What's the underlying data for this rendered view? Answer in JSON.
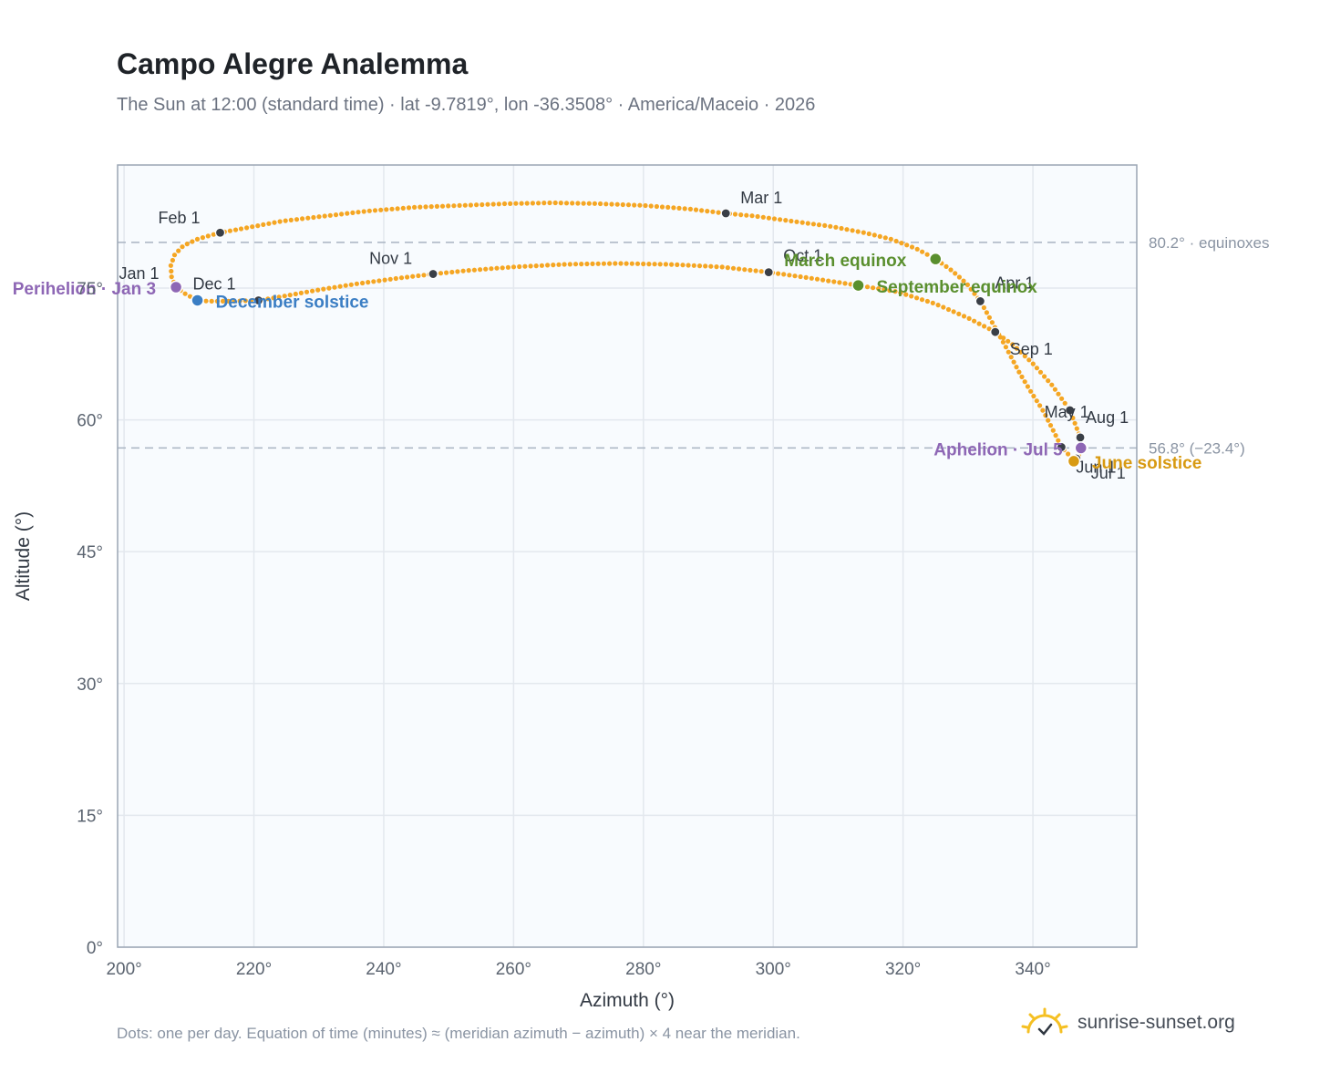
{
  "header": {
    "title": "Campo Alegre Analemma",
    "subtitle": "The Sun at 12:00 (standard time) · lat -9.7819°, lon -36.3508° · America/Maceio · 2026"
  },
  "footer": {
    "note": "Dots: one per day. Equation of time (minutes) ≈ (meridian azimuth − azimuth) × 4 near the meridian.",
    "brand": "sunrise-sunset.org"
  },
  "colors": {
    "curve": "#f5a623",
    "month_dot": "#3a3f47",
    "equinox": "#5a8f2e",
    "december_solstice": "#3b7ec4",
    "june_solstice": "#d89a12",
    "apsis": "#8e67b5",
    "reference_line": "#a9b4c2",
    "plot_background": "#f8fbfe",
    "grid": "#e3e8ee"
  },
  "chart_data": {
    "type": "scatter",
    "xlabel": "Azimuth (°)",
    "ylabel": "Altitude (°)",
    "xlim": [
      199,
      356
    ],
    "ylim": [
      0,
      89
    ],
    "x_ticks": [
      200,
      220,
      240,
      260,
      280,
      300,
      320,
      340
    ],
    "x_tick_labels": [
      "200°",
      "220°",
      "240°",
      "260°",
      "280°",
      "300°",
      "320°",
      "340°"
    ],
    "y_ticks": [
      0,
      15,
      30,
      45,
      60,
      75
    ],
    "y_tick_labels": [
      "0°",
      "15°",
      "30°",
      "45°",
      "60°",
      "75°"
    ],
    "grid": true,
    "reference_lines": [
      {
        "y": 80.2,
        "label": "80.2° · equinoxes"
      },
      {
        "y": 56.8,
        "label": "56.8° (−23.4°)"
      }
    ],
    "series": [
      {
        "points": [
          [
            208.0,
            75.1
          ],
          [
            207.3,
            76.3
          ],
          [
            207.2,
            77.6
          ],
          [
            207.8,
            78.8
          ],
          [
            209.1,
            79.8
          ],
          [
            211.4,
            80.6
          ],
          [
            214.8,
            81.3
          ],
          [
            219.2,
            81.9
          ],
          [
            224.2,
            82.6
          ],
          [
            231.0,
            83.2
          ],
          [
            238.0,
            83.8
          ],
          [
            245.0,
            84.2
          ],
          [
            252.0,
            84.4
          ],
          [
            259.0,
            84.6
          ],
          [
            266.0,
            84.7
          ],
          [
            273.0,
            84.6
          ],
          [
            280.0,
            84.4
          ],
          [
            287.0,
            84.0
          ],
          [
            292.7,
            83.5
          ],
          [
            297.0,
            83.2
          ],
          [
            303.0,
            82.6
          ],
          [
            309.0,
            82.0
          ],
          [
            314.0,
            81.3
          ],
          [
            318.0,
            80.6
          ],
          [
            322.0,
            79.5
          ],
          [
            325.0,
            78.3
          ],
          [
            327.5,
            77.0
          ],
          [
            329.8,
            75.5
          ],
          [
            331.9,
            73.5
          ],
          [
            333.8,
            71.0
          ],
          [
            335.9,
            68.2
          ],
          [
            337.9,
            65.4
          ],
          [
            339.6,
            63.3
          ],
          [
            341.6,
            61.0
          ],
          [
            343.0,
            59.0
          ],
          [
            344.4,
            56.9
          ],
          [
            345.7,
            55.9
          ],
          [
            346.3,
            55.3
          ],
          [
            347.0,
            55.7
          ],
          [
            347.4,
            56.8
          ],
          [
            347.3,
            58.0
          ],
          [
            345.7,
            61.1
          ],
          [
            343.0,
            63.9
          ],
          [
            340.0,
            66.4
          ],
          [
            337.0,
            68.5
          ],
          [
            334.2,
            70.0
          ],
          [
            330.0,
            71.6
          ],
          [
            325.0,
            73.2
          ],
          [
            319.0,
            74.6
          ],
          [
            313.1,
            75.3
          ],
          [
            306.0,
            76.1
          ],
          [
            299.3,
            76.8
          ],
          [
            292.0,
            77.4
          ],
          [
            284.0,
            77.7
          ],
          [
            276.0,
            77.8
          ],
          [
            268.0,
            77.7
          ],
          [
            260.0,
            77.4
          ],
          [
            253.0,
            77.0
          ],
          [
            247.6,
            76.6
          ],
          [
            242.0,
            76.1
          ],
          [
            236.0,
            75.5
          ],
          [
            230.0,
            74.8
          ],
          [
            224.0,
            74.0
          ],
          [
            220.7,
            73.6
          ],
          [
            216.5,
            73.5
          ],
          [
            213.0,
            73.5
          ],
          [
            211.3,
            73.6
          ],
          [
            209.5,
            74.3
          ],
          [
            208.0,
            75.1
          ]
        ]
      }
    ],
    "month_markers": [
      {
        "label": "Jan 1",
        "x": 208.2,
        "y": 75.2
      },
      {
        "label": "Feb 1",
        "x": 214.8,
        "y": 81.3
      },
      {
        "label": "Mar 1",
        "x": 292.7,
        "y": 83.5
      },
      {
        "label": "Apr 1",
        "x": 331.9,
        "y": 73.5
      },
      {
        "label": "May 1",
        "x": 345.7,
        "y": 61.1
      },
      {
        "label": "Jun 1",
        "x": 344.4,
        "y": 56.9
      },
      {
        "label": "Jul 1",
        "x": 346.7,
        "y": 55.6
      },
      {
        "label": "Aug 1",
        "x": 347.3,
        "y": 58.0
      },
      {
        "label": "Sep 1",
        "x": 334.2,
        "y": 70.0
      },
      {
        "label": "Oct 1",
        "x": 299.3,
        "y": 76.8
      },
      {
        "label": "Nov 1",
        "x": 247.6,
        "y": 76.6
      },
      {
        "label": "Dec 1",
        "x": 220.7,
        "y": 73.6
      }
    ],
    "events": [
      {
        "label": "March equinox",
        "x": 325.0,
        "y": 78.3,
        "kind": "equinox"
      },
      {
        "label": "September equinox",
        "x": 313.1,
        "y": 75.3,
        "kind": "equinox"
      },
      {
        "label": "June solstice",
        "x": 346.3,
        "y": 55.3,
        "kind": "june_solstice"
      },
      {
        "label": "December solstice",
        "x": 211.3,
        "y": 73.6,
        "kind": "december_solstice"
      },
      {
        "label": "Perihelion · Jan 3",
        "x": 208.0,
        "y": 75.1,
        "kind": "apsis"
      },
      {
        "label": "Aphelion · Jul 5",
        "x": 347.4,
        "y": 56.8,
        "kind": "apsis"
      }
    ]
  }
}
